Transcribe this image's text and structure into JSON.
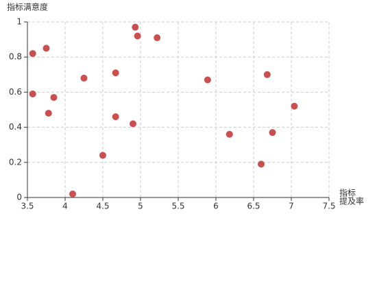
{
  "chart_data": {
    "type": "scatter",
    "title": "指标满意度",
    "xlabel": [
      "指标",
      "提及率"
    ],
    "color": "#c9504f",
    "grid": true,
    "x": [
      3.57,
      3.75,
      3.57,
      3.85,
      3.78,
      4.25,
      4.1,
      4.5,
      4.67,
      4.67,
      4.9,
      4.93,
      4.96,
      5.22,
      5.89,
      6.18,
      6.6,
      6.68,
      6.75,
      7.04
    ],
    "values": [
      0.82,
      0.85,
      0.59,
      0.57,
      0.48,
      0.68,
      0.02,
      0.24,
      0.71,
      0.46,
      0.42,
      0.97,
      0.92,
      0.91,
      0.67,
      0.36,
      0.19,
      0.7,
      0.37,
      0.52
    ],
    "xlim": [
      3.5,
      7.5
    ],
    "xticks": [
      3.5,
      4,
      4.5,
      5,
      5.5,
      6,
      6.5,
      7,
      7.5
    ],
    "ylim": [
      0,
      1
    ],
    "yticks": [
      0,
      0.2,
      0.4,
      0.6,
      0.8,
      1
    ]
  }
}
